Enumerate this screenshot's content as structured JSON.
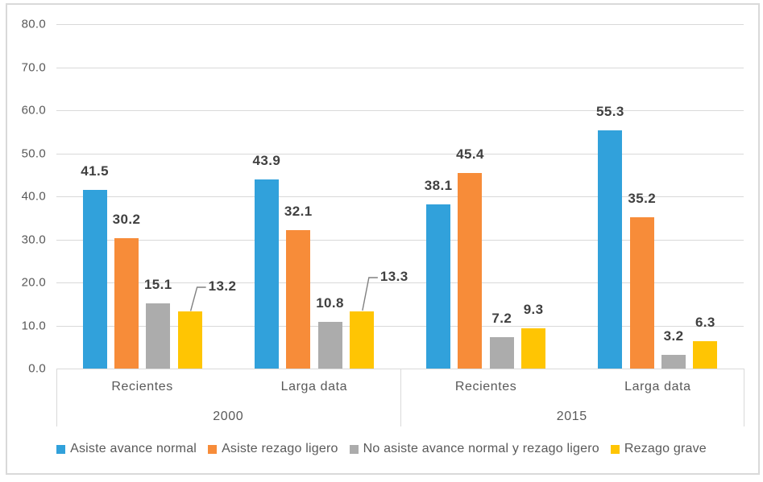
{
  "chart_data": {
    "type": "bar",
    "title": "",
    "group_labels": [
      "2000",
      "2015"
    ],
    "categories": [
      "Recientes",
      "Larga data",
      "Recientes",
      "Larga data"
    ],
    "series": [
      {
        "name": "Asiste avance normal",
        "color": "#31A1DB",
        "values": [
          41.5,
          43.9,
          38.1,
          55.3
        ]
      },
      {
        "name": "Asiste rezago ligero",
        "color": "#F78C39",
        "values": [
          30.2,
          32.1,
          45.4,
          35.2
        ]
      },
      {
        "name": "No asiste avance normal y rezago ligero",
        "color": "#ACACAC",
        "values": [
          15.1,
          10.8,
          7.2,
          3.2
        ]
      },
      {
        "name": "Rezago grave",
        "color": "#FFC503",
        "values": [
          13.2,
          13.3,
          9.3,
          6.3
        ]
      }
    ],
    "y_ticks": [
      "80.0",
      "70.0",
      "60.0",
      "50.0",
      "40.0",
      "30.0",
      "20.0",
      "10.0",
      "0.0"
    ],
    "ylim": [
      0,
      80
    ],
    "grid": true,
    "data_labels": true,
    "legend_position": "bottom",
    "callouts": [
      {
        "series": 3,
        "group": 0,
        "label": "13.2"
      },
      {
        "series": 3,
        "group": 1,
        "label": "13.3"
      }
    ],
    "colors": {
      "gridline": "#D9D9D9",
      "outer_border": "#D9D9D9",
      "axis_text": "#595959",
      "data_label_text": "#404040",
      "callout_leader": "#808080"
    }
  }
}
